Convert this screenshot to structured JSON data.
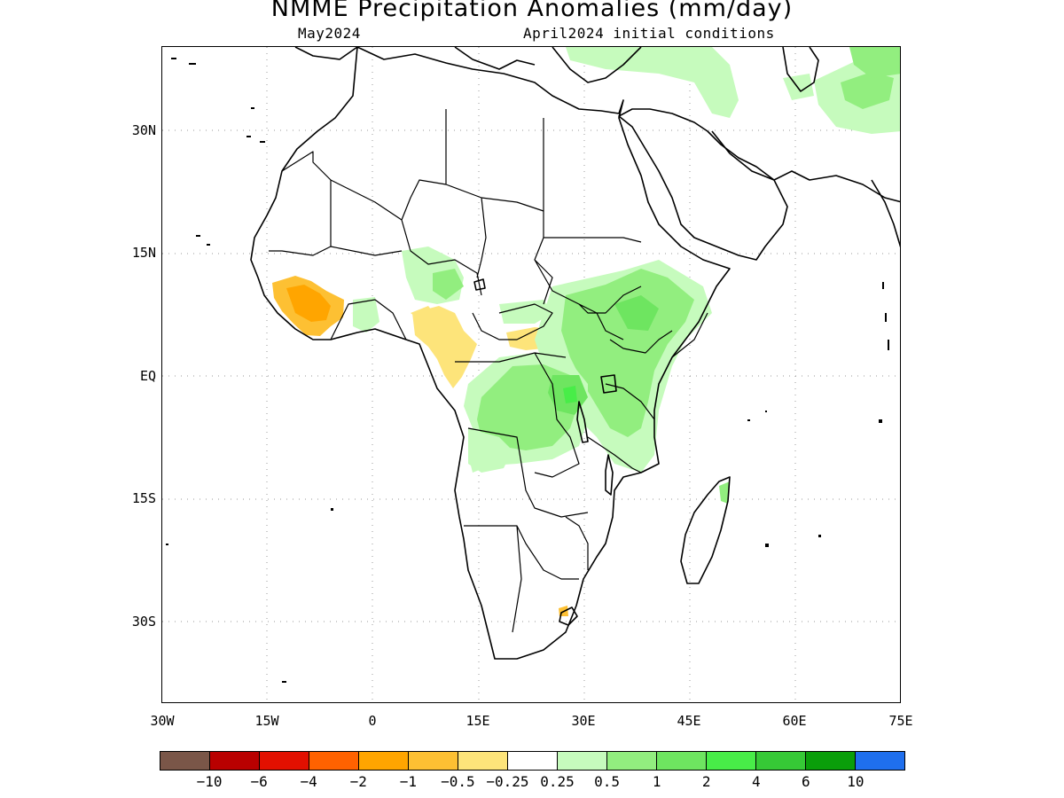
{
  "header": {
    "title": "NMME Precipitation Anomalies (mm/day)",
    "target_month": "May2024",
    "init_conditions": "April2024 initial conditions"
  },
  "map": {
    "region": "Africa",
    "lon_range": [
      -30,
      75
    ],
    "lat_range": [
      -40,
      40
    ],
    "lat_ticks": [
      "30N",
      "15N",
      "EQ",
      "15S",
      "30S"
    ],
    "lon_ticks": [
      "30W",
      "15W",
      "0",
      "15E",
      "30E",
      "45E",
      "60E",
      "75E"
    ],
    "grid": true,
    "anomaly_areas": [
      {
        "name": "West Africa coast (Guinea/Sierra Leone/Liberia)",
        "category": "-1 to -0.5",
        "color": "#fdc033"
      },
      {
        "name": "Nigeria/Cameroon",
        "category": "-0.5 to -0.25",
        "color": "#fde47a"
      },
      {
        "name": "Central African Republic",
        "category": "-0.5 to -0.25",
        "color": "#fde47a"
      },
      {
        "name": "Ethiopia/South Sudan/East Africa",
        "category": "0.5 to 1",
        "color": "#92ee7f"
      },
      {
        "name": "Congo Basin",
        "category": "0.5 to 1",
        "color": "#92ee7f"
      },
      {
        "name": "Lake Victoria region",
        "category": "1 to 2",
        "color": "#6ee560"
      },
      {
        "name": "Arabian Peninsula north / Iran / Afghanistan",
        "category": "0.25 to 0.5",
        "color": "#c6fbbd"
      }
    ]
  },
  "colorbar": {
    "colors": [
      "#7a5648",
      "#b90000",
      "#e21000",
      "#ff6200",
      "#ffa500",
      "#fdc033",
      "#fde47a",
      "#ffffff",
      "#c6fbbd",
      "#92ee7f",
      "#6ee560",
      "#48ed48",
      "#36c936",
      "#0a9e0a",
      "#1f6fee"
    ],
    "labels": [
      "−10",
      "−6",
      "−4",
      "−2",
      "−1",
      "−0.5",
      "−0.25",
      "0.25",
      "0.5",
      "1",
      "2",
      "4",
      "6",
      "10"
    ]
  }
}
